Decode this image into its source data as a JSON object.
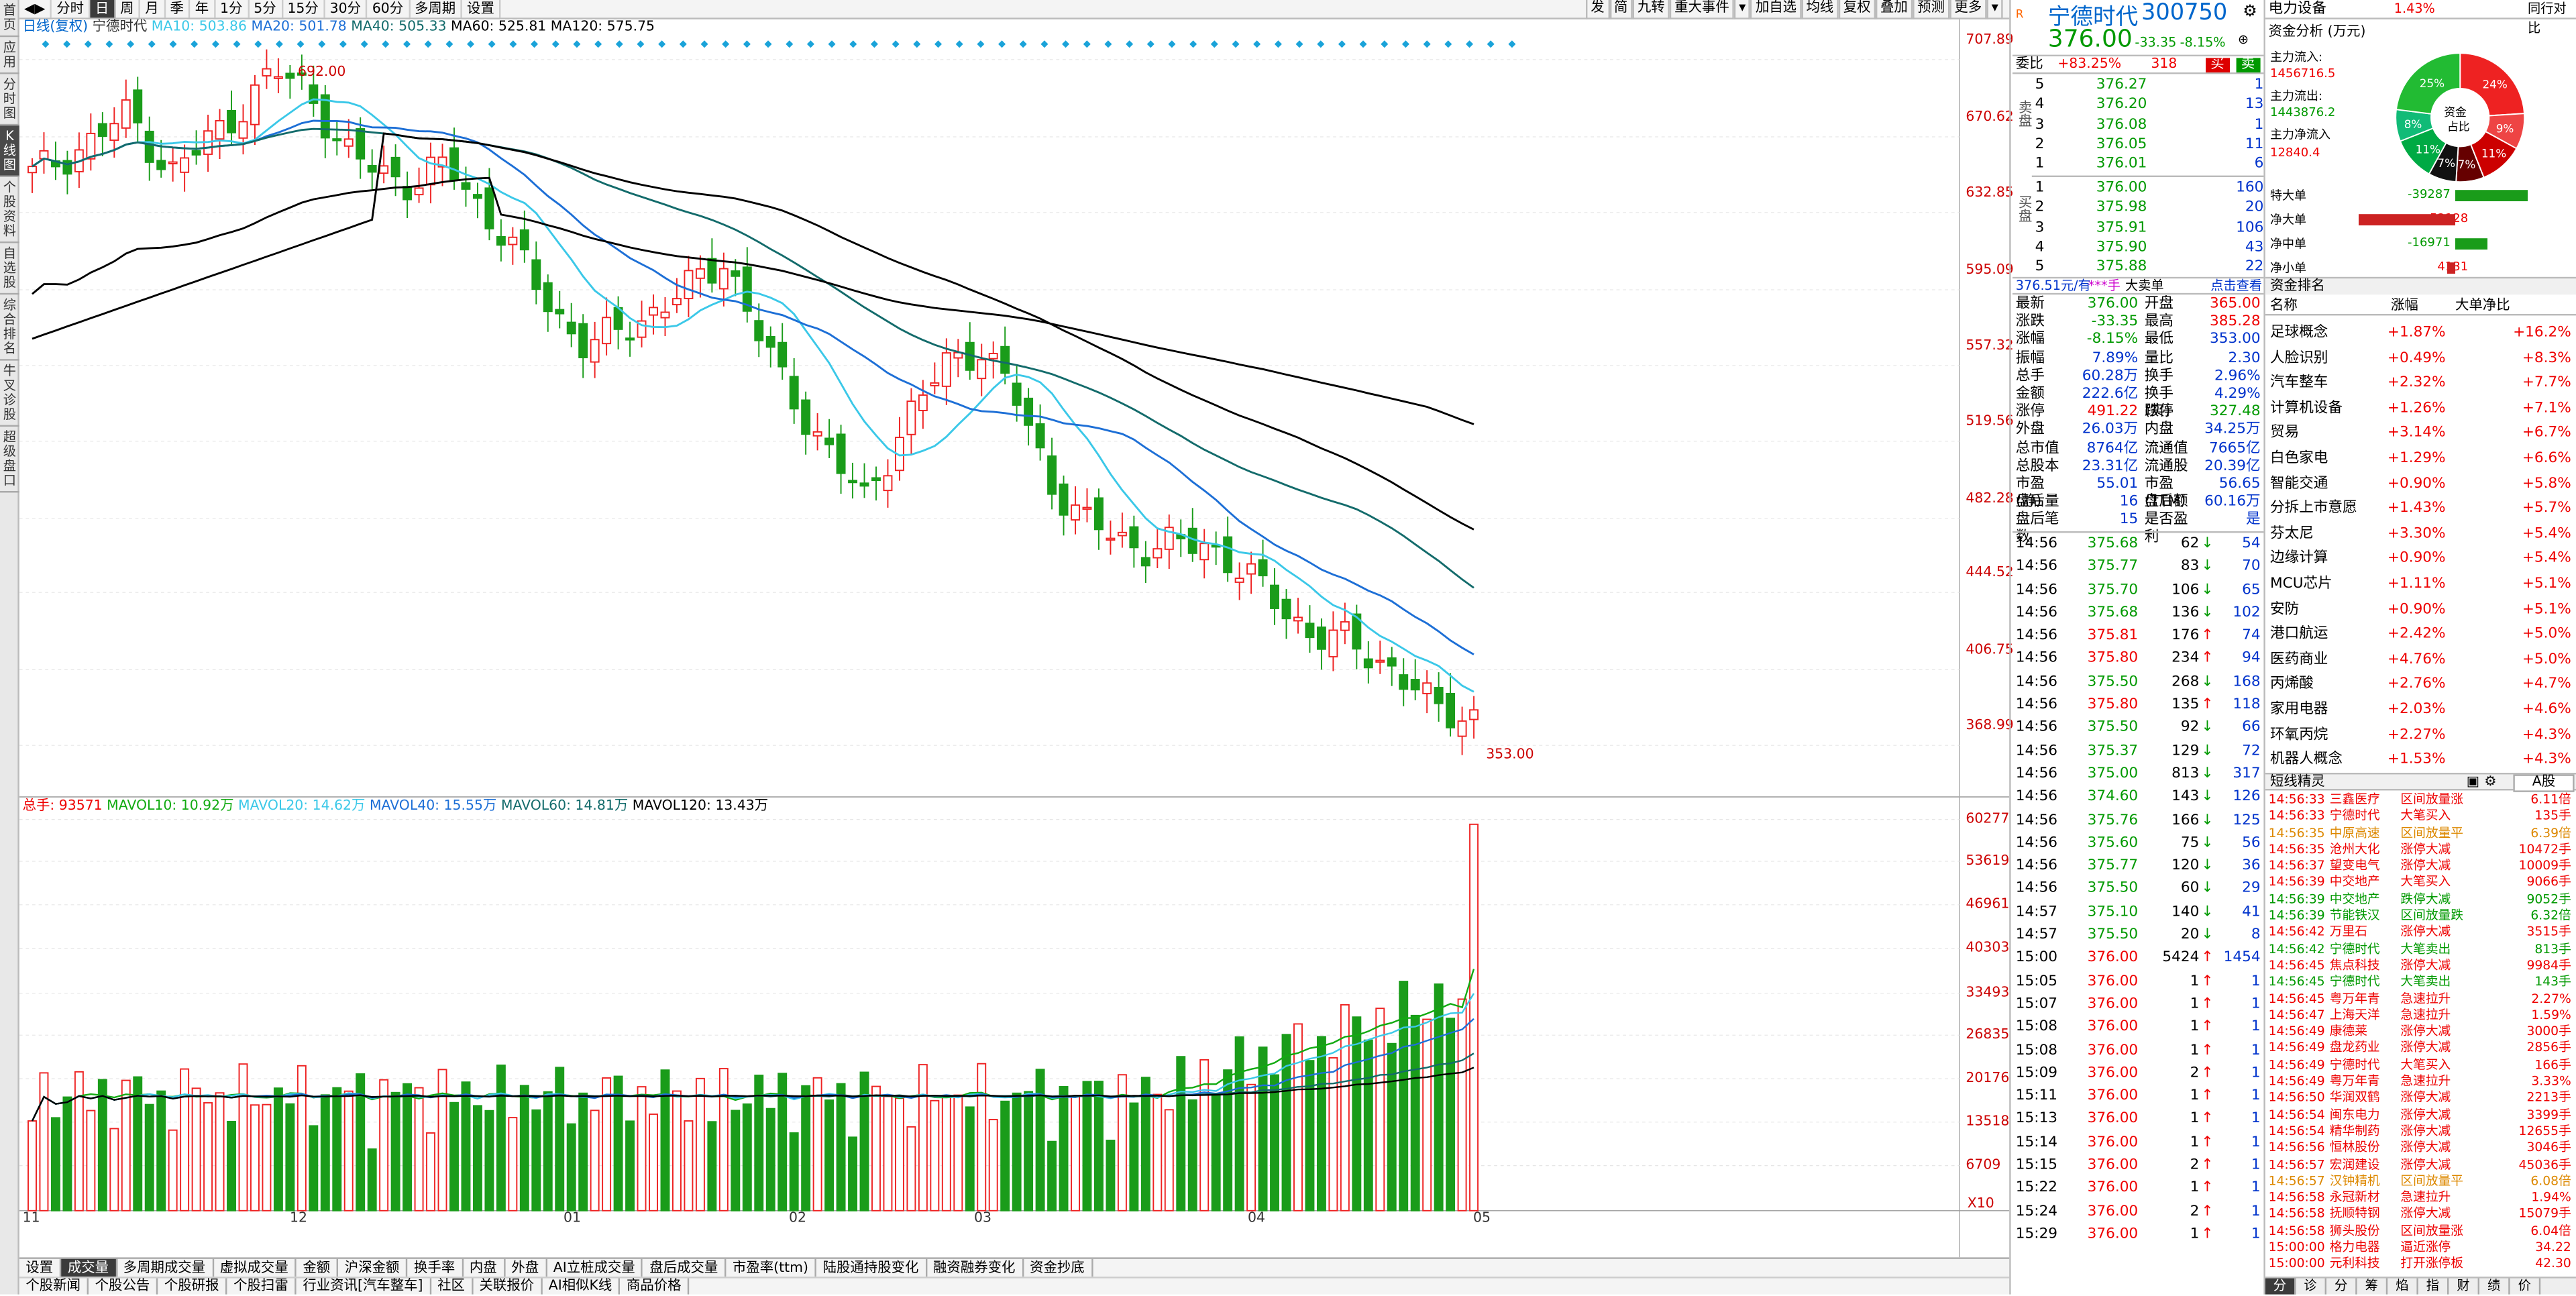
{
  "left_tabs": [
    "首页",
    "应用",
    "分时图",
    "K线图",
    "个股资料",
    "自选股",
    "综合排名",
    "牛叉诊股",
    "超级盘口"
  ],
  "top_tabs": [
    "◀▶",
    "分时",
    "日",
    "周",
    "月",
    "季",
    "年",
    "1分",
    "5分",
    "15分",
    "30分",
    "60分",
    "多周期",
    "设置"
  ],
  "top_right_tabs": [
    "发",
    "简",
    "九转",
    "重大事件",
    "▾",
    "加自选",
    "均线",
    "复权",
    "叠加",
    "预测",
    "更多",
    "▾"
  ],
  "kline_legend": {
    "main": "日线(复权)",
    "stock": "宁德时代",
    "ma10": "MA10: 503.86",
    "ma20": "MA20: 501.78",
    "ma40": "MA40: 505.33",
    "ma60": "MA60: 525.81",
    "ma120": "MA120: 575.75"
  },
  "price_axis": [
    "707.89",
    "670.62",
    "632.85",
    "595.09",
    "557.32",
    "519.56",
    "482.28",
    "444.52",
    "406.75",
    "368.99"
  ],
  "hi_label": "692.00",
  "lo_label": "353.00",
  "month_labels": [
    "11",
    "12",
    "01",
    "02",
    "03",
    "04",
    "05"
  ],
  "vol_legend": {
    "total": "总手: 93571",
    "mavol10": "MAVOL10: 10.92万",
    "mavol20": "MAVOL20: 14.62万",
    "mavol40": "MAVOL40: 15.55万",
    "mavol60": "MAVOL60: 14.81万",
    "mavol120": "MAVOL120: 13.43万"
  },
  "vol_axis": [
    "60277",
    "53619",
    "46961",
    "40303",
    "33493",
    "26835",
    "20176",
    "13518",
    "6709"
  ],
  "vol_unit": "X10",
  "bottom_tabs": [
    "设置",
    "成交量",
    "多周期成交量",
    "虚拟成交量",
    "金额",
    "沪深金额",
    "换手率",
    "内盘",
    "外盘",
    "AI立桩成交量",
    "盘后成交量",
    "市盈率(ttm)",
    "陆股通持股变化",
    "融资融券变化",
    "资金抄底"
  ],
  "bottom_tabs2": [
    "个股新闻",
    "个股公告",
    "个股研报",
    "个股扫雷",
    "行业资讯[汽车整车]",
    "社区",
    "关联报价",
    "AI相似K线",
    "商品价格"
  ],
  "quote": {
    "code": "300750",
    "name": "宁德时代",
    "price": "376.00",
    "chg": "-33.35",
    "pct": "-8.15%",
    "weibi_label": "委比",
    "weibi": "+83.25%",
    "weicha": "318",
    "buy": "买",
    "sell": "卖",
    "asks": [
      [
        "5",
        "376.27",
        "1"
      ],
      [
        "4",
        "376.20",
        "13"
      ],
      [
        "3",
        "376.08",
        "1"
      ],
      [
        "2",
        "376.05",
        "11"
      ],
      [
        "1",
        "376.01",
        "6"
      ]
    ],
    "bids": [
      [
        "1",
        "376.00",
        "160"
      ],
      [
        "2",
        "375.98",
        "20"
      ],
      [
        "3",
        "375.91",
        "106"
      ],
      [
        "4",
        "375.90",
        "43"
      ],
      [
        "5",
        "375.88",
        "22"
      ]
    ],
    "ask_side": "卖盘",
    "bid_side": "买盘",
    "mid_bar": {
      "a": "376.51元/有",
      "b": "***手",
      "c": "大卖单",
      "d": "点击查看"
    },
    "stats": [
      [
        "最新",
        "376.00",
        "开盘",
        "365.00"
      ],
      [
        "涨跌",
        "-33.35",
        "最高",
        "385.28"
      ],
      [
        "涨幅",
        "-8.15%",
        "最低",
        "353.00"
      ],
      [
        "振幅",
        "7.89%",
        "量比",
        "2.30"
      ],
      [
        "总手",
        "60.28万",
        "换手",
        "2.96%"
      ],
      [
        "金额",
        "222.6亿",
        "换手(实)",
        "4.29%"
      ],
      [
        "涨停",
        "491.22",
        "跌停",
        "327.48"
      ],
      [
        "外盘",
        "26.03万",
        "内盘",
        "34.25万"
      ],
      [
        "总市值",
        "8764亿",
        "流通值",
        "7665亿"
      ],
      [
        "总股本",
        "23.31亿",
        "流通股",
        "20.39亿"
      ],
      [
        "市盈(静)",
        "55.01",
        "市盈(TTM)",
        "56.65"
      ],
      [
        "盘后量",
        "16",
        "盘后额",
        "60.16万"
      ],
      [
        "盘后笔数",
        "15",
        "是否盈利",
        "是"
      ]
    ],
    "trades": [
      [
        "14:56",
        "375.68",
        "62",
        "54"
      ],
      [
        "14:56",
        "375.77",
        "83",
        "70"
      ],
      [
        "14:56",
        "375.70",
        "106",
        "65"
      ],
      [
        "14:56",
        "375.68",
        "136",
        "102"
      ],
      [
        "14:56",
        "375.81",
        "176",
        "74"
      ],
      [
        "14:56",
        "375.80",
        "234",
        "94"
      ],
      [
        "14:56",
        "375.50",
        "268",
        "168"
      ],
      [
        "14:56",
        "375.80",
        "135",
        "118"
      ],
      [
        "14:56",
        "375.50",
        "92",
        "66"
      ],
      [
        "14:56",
        "375.37",
        "129",
        "72"
      ],
      [
        "14:56",
        "375.00",
        "813",
        "317"
      ],
      [
        "14:56",
        "374.60",
        "143",
        "126"
      ],
      [
        "14:56",
        "375.76",
        "166",
        "125"
      ],
      [
        "14:56",
        "375.60",
        "75",
        "56"
      ],
      [
        "14:56",
        "375.77",
        "120",
        "36"
      ],
      [
        "14:56",
        "375.50",
        "60",
        "29"
      ],
      [
        "14:57",
        "375.10",
        "140",
        "41"
      ],
      [
        "14:57",
        "375.50",
        "20",
        "8"
      ],
      [
        "15:00",
        "376.00",
        "5424",
        "1454"
      ],
      [
        "15:05",
        "376.00",
        "1",
        "1"
      ],
      [
        "15:07",
        "376.00",
        "1",
        "1"
      ],
      [
        "15:08",
        "376.00",
        "1",
        "1"
      ],
      [
        "15:08",
        "376.00",
        "1",
        "1"
      ],
      [
        "15:09",
        "376.00",
        "2",
        "1"
      ],
      [
        "15:11",
        "376.00",
        "1",
        "1"
      ],
      [
        "15:13",
        "376.00",
        "1",
        "1"
      ],
      [
        "15:14",
        "376.00",
        "1",
        "1"
      ],
      [
        "15:15",
        "376.00",
        "2",
        "1"
      ],
      [
        "15:22",
        "376.00",
        "1",
        "1"
      ],
      [
        "15:24",
        "376.00",
        "2",
        "1"
      ],
      [
        "15:29",
        "376.00",
        "1",
        "1"
      ]
    ]
  },
  "industry": {
    "name": "电力设备",
    "pct": "1.43%",
    "link": "同行对比",
    "fund_title": "资金分析 (万元)",
    "inflow_label": "主力流入:",
    "inflow": "1456716.5",
    "outflow_label": "主力流出:",
    "outflow": "1443876.2",
    "net_label": "主力净流入",
    "net": "12840.4",
    "pie_center": "资金占比",
    "pie_labels": [
      "24%",
      "9%",
      "11%",
      "7%",
      "7%",
      "11%",
      "8%",
      "25%"
    ],
    "flows": [
      [
        "特大单",
        "-39287"
      ],
      [
        "净大单",
        "52128"
      ],
      [
        "净中单",
        "-16971"
      ],
      [
        "净小单",
        "4131"
      ]
    ],
    "rank_title": "资金排名",
    "rank_head": [
      "名称",
      "涨幅",
      "大单净比"
    ],
    "rank": [
      [
        "足球概念",
        "+1.87%",
        "+16.2%"
      ],
      [
        "人脸识别",
        "+0.49%",
        "+8.3%"
      ],
      [
        "汽车整车",
        "+2.32%",
        "+7.7%"
      ],
      [
        "计算机设备",
        "+1.26%",
        "+7.1%"
      ],
      [
        "贸易",
        "+3.14%",
        "+6.7%"
      ],
      [
        "白色家电",
        "+1.29%",
        "+6.6%"
      ],
      [
        "智能交通",
        "+0.90%",
        "+5.8%"
      ],
      [
        "分拆上市意愿",
        "+1.43%",
        "+5.7%"
      ],
      [
        "芬太尼",
        "+3.30%",
        "+5.4%"
      ],
      [
        "边缘计算",
        "+0.90%",
        "+5.4%"
      ],
      [
        "MCU芯片",
        "+1.11%",
        "+5.1%"
      ],
      [
        "安防",
        "+0.90%",
        "+5.1%"
      ],
      [
        "港口航运",
        "+2.42%",
        "+5.0%"
      ],
      [
        "医药商业",
        "+4.76%",
        "+5.0%"
      ],
      [
        "丙烯酸",
        "+2.76%",
        "+4.7%"
      ],
      [
        "家用电器",
        "+2.03%",
        "+4.6%"
      ],
      [
        "环氧丙烷",
        "+2.27%",
        "+4.3%"
      ],
      [
        "机器人概念",
        "+1.53%",
        "+4.3%"
      ]
    ],
    "tick_title": "短线精灵",
    "tick_sel": "A股",
    "ticks": [
      [
        "14:56:33",
        "三鑫医疗",
        "区间放量涨",
        "6.11倍"
      ],
      [
        "14:56:33",
        "宁德时代",
        "大笔买入",
        "135手"
      ],
      [
        "14:56:35",
        "中原高速",
        "区间放量平",
        "6.39倍"
      ],
      [
        "14:56:35",
        "沧州大化",
        "涨停大减",
        "10472手"
      ],
      [
        "14:56:37",
        "望变电气",
        "涨停大减",
        "10009手"
      ],
      [
        "14:56:39",
        "中交地产",
        "大笔买入",
        "9066手"
      ],
      [
        "14:56:39",
        "中交地产",
        "跌停大减",
        "9052手"
      ],
      [
        "14:56:39",
        "节能铁汉",
        "区间放量跌",
        "6.32倍"
      ],
      [
        "14:56:42",
        "万里石",
        "涨停大减",
        "3515手"
      ],
      [
        "14:56:42",
        "宁德时代",
        "大笔卖出",
        "813手"
      ],
      [
        "14:56:45",
        "焦点科技",
        "涨停大减",
        "9984手"
      ],
      [
        "14:56:45",
        "宁德时代",
        "大笔卖出",
        "143手"
      ],
      [
        "14:56:45",
        "粤万年青",
        "急速拉升",
        "2.27%"
      ],
      [
        "14:56:47",
        "上海天洋",
        "急速拉升",
        "1.59%"
      ],
      [
        "14:56:49",
        "康德莱",
        "涨停大减",
        "3000手"
      ],
      [
        "14:56:49",
        "盘龙药业",
        "涨停大减",
        "2856手"
      ],
      [
        "14:56:49",
        "宁德时代",
        "大笔买入",
        "166手"
      ],
      [
        "14:56:49",
        "粤万年青",
        "急速拉升",
        "3.33%"
      ],
      [
        "14:56:50",
        "华润双鹤",
        "涨停大减",
        "2213手"
      ],
      [
        "14:56:54",
        "闽东电力",
        "涨停大减",
        "3399手"
      ],
      [
        "14:56:54",
        "精华制药",
        "涨停大减",
        "12655手"
      ],
      [
        "14:56:56",
        "恒林股份",
        "涨停大减",
        "3046手"
      ],
      [
        "14:56:57",
        "宏润建设",
        "涨停大减",
        "45036手"
      ],
      [
        "14:56:57",
        "汉钟精机",
        "区间放量平",
        "6.08倍"
      ],
      [
        "14:56:58",
        "永冠新材",
        "急速拉升",
        "1.94%"
      ],
      [
        "14:56:58",
        "抚顺特钢",
        "涨停大减",
        "15079手"
      ],
      [
        "14:56:58",
        "狮头股份",
        "区间放量涨",
        "6.04倍"
      ],
      [
        "15:00:00",
        "格力电器",
        "逼近涨停",
        "34.22"
      ],
      [
        "15:00:00",
        "元利科技",
        "打开涨停板",
        "42.30"
      ]
    ],
    "tick_footer": [
      "分",
      "诊",
      "分",
      "筹",
      "焰",
      "指",
      "财",
      "绩",
      "价"
    ]
  },
  "chart_data": {
    "type": "candlestick",
    "x_range": [
      "2024-10",
      "2025-05-05"
    ],
    "price_range": [
      353.0,
      707.89
    ],
    "high": 692.0,
    "low": 353.0,
    "volume_ylim": [
      0,
      60277
    ],
    "ma_periods": [
      10,
      20,
      40,
      60,
      120
    ],
    "last_close": 376.0
  }
}
